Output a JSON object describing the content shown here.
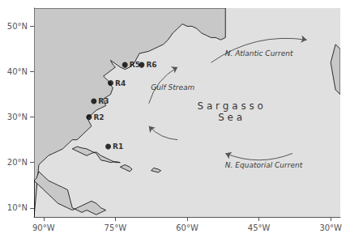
{
  "chart_data": {
    "type": "scatter",
    "xlim": [
      -92,
      -28
    ],
    "ylim": [
      8,
      54
    ],
    "xticks": [
      {
        "value": -90,
        "label": "90°W"
      },
      {
        "value": -75,
        "label": "75°W"
      },
      {
        "value": -60,
        "label": "60°W"
      },
      {
        "value": -45,
        "label": "45°W"
      },
      {
        "value": -30,
        "label": "30°W"
      }
    ],
    "yticks": [
      {
        "value": 10,
        "label": "10°N"
      },
      {
        "value": 20,
        "label": "20°N"
      },
      {
        "value": 30,
        "label": "30°N"
      },
      {
        "value": 40,
        "label": "40°N"
      },
      {
        "value": 50,
        "label": "50°N"
      }
    ],
    "grid": false,
    "series": [
      {
        "type": "polygon",
        "color": "#e0e0e0",
        "line_style": "none",
        "x": [
          -92,
          -92,
          -28,
          -28
        ],
        "y": [
          8,
          54,
          54,
          8
        ]
      },
      {
        "type": "polygon",
        "color": "#c8c8c8",
        "line_style": "solid",
        "x": [
          -92,
          -91,
          -90,
          -89,
          -88,
          -87,
          -86,
          -85,
          -84,
          -83,
          -82,
          -81,
          -80,
          -80.5,
          -81,
          -80,
          -79,
          -78,
          -77,
          -77.5,
          -76,
          -75.5,
          -76,
          -76.5,
          -77,
          -77.5,
          -75,
          -75.5,
          -76,
          -74,
          -73,
          -72,
          -71,
          -70.5,
          -70,
          -68,
          -67,
          -66,
          -65,
          -64,
          -63,
          -62,
          -61,
          -60,
          -59,
          -58,
          -57,
          -56,
          -55,
          -54,
          -53,
          -52,
          -52,
          -92,
          -92
        ],
        "y": [
          8,
          19.5,
          20.5,
          21.5,
          22,
          22.5,
          23,
          24,
          25,
          25,
          26,
          27,
          28,
          29,
          30,
          30.5,
          31.5,
          32,
          32.5,
          34,
          35,
          36.5,
          37,
          38,
          38.5,
          39,
          41,
          41.5,
          42.5,
          41,
          40.5,
          41,
          42,
          43,
          44,
          44.5,
          45,
          45.5,
          46,
          47,
          48.5,
          49.5,
          50.5,
          50,
          50,
          49.5,
          48.5,
          48,
          47.5,
          47.5,
          47,
          47.5,
          54,
          54,
          8
        ]
      },
      {
        "type": "polygon",
        "color": "#c8c8c8",
        "line_style": "solid",
        "x": [
          -92,
          -91.5,
          -91,
          -90,
          -89,
          -88,
          -87,
          -86,
          -85,
          -84,
          -83,
          -82,
          -81,
          -80,
          -79,
          -78,
          -77,
          -78,
          -79,
          -80,
          -81,
          -82,
          -83,
          -84,
          -85,
          -86,
          -87,
          -88,
          -89,
          -90,
          -91,
          -92,
          -92
        ],
        "y": [
          16,
          16.5,
          18,
          17,
          16,
          15.5,
          15,
          14.5,
          14,
          10,
          9.5,
          9,
          9.5,
          9,
          8.5,
          9,
          9.5,
          10,
          11,
          11.5,
          11,
          10.5,
          10,
          9.5,
          10,
          10.5,
          11,
          12,
          13,
          14,
          15,
          16,
          8
        ]
      },
      {
        "type": "polygon",
        "color": "#c8c8c8",
        "line_style": "solid",
        "x": [
          -74,
          -75,
          -76,
          -77,
          -78,
          -79,
          -80,
          -81,
          -82,
          -83,
          -84,
          -83,
          -82,
          -81,
          -80,
          -79,
          -78,
          -77,
          -76,
          -75,
          -74
        ],
        "y": [
          20,
          20.2,
          20,
          20.3,
          20.5,
          22,
          22.5,
          23,
          23.2,
          23.5,
          23,
          22.5,
          22,
          21.5,
          22,
          22.3,
          21.5,
          21,
          20.5,
          20,
          20
        ]
      },
      {
        "type": "polygon",
        "color": "#c8c8c8",
        "line_style": "solid",
        "x": [
          -71.5,
          -72,
          -73,
          -74,
          -73,
          -72,
          -71.5
        ],
        "y": [
          18.5,
          19,
          19.5,
          19,
          18.5,
          18,
          18.5
        ]
      },
      {
        "type": "polygon",
        "color": "#c8c8c8",
        "line_style": "solid",
        "x": [
          -66,
          -67,
          -67.5,
          -66,
          -65.5,
          -66
        ],
        "y": [
          18.5,
          18.8,
          18.2,
          17.8,
          18.2,
          18.5
        ]
      },
      {
        "type": "polygon",
        "color": "#c8c8c8",
        "line_style": "solid",
        "x": [
          -28,
          -28,
          -29,
          -30,
          -29,
          -28
        ],
        "y": [
          35,
          45,
          46,
          42,
          36,
          35
        ]
      },
      {
        "type": "scatter",
        "color": "#000000",
        "labels": [
          "R1",
          "R2",
          "R3",
          "R4",
          "R5",
          "R6"
        ],
        "x": [
          -76.5,
          -80.5,
          -79.5,
          -76.0,
          -73.0,
          -69.5
        ],
        "y": [
          23.5,
          30.0,
          33.5,
          37.5,
          41.5,
          41.5
        ]
      }
    ],
    "arrows": [
      {
        "color": "#555555",
        "x": [
          -68,
          -62
        ],
        "y": [
          33,
          41
        ]
      },
      {
        "color": "#555555",
        "x": [
          -55,
          -35
        ],
        "y": [
          42,
          47
        ]
      },
      {
        "color": "#555555",
        "x": [
          -38,
          -52
        ],
        "y": [
          22,
          22
        ]
      },
      {
        "color": "#555555",
        "x": [
          -62,
          -68
        ],
        "y": [
          25,
          28
        ]
      }
    ],
    "annotations": [
      {
        "text": "N. Atlantic Current",
        "x": -45,
        "y": 44,
        "style": "italic"
      },
      {
        "text": "Gulf Stream",
        "x": -63,
        "y": 36.5,
        "style": "italic"
      },
      {
        "text": "S a r g a s s o",
        "x": -51,
        "y": 32.5,
        "style": "normal"
      },
      {
        "text": "S e a",
        "x": -51,
        "y": 30,
        "style": "normal"
      },
      {
        "text": "N. Equatorial Current",
        "x": -44,
        "y": 19.5,
        "style": "italic"
      }
    ]
  }
}
